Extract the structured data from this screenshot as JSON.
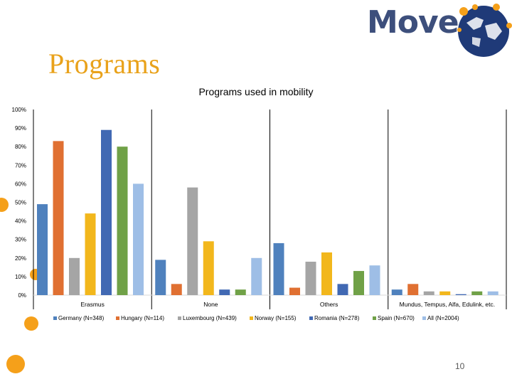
{
  "slide": {
    "title": "Programs",
    "logo_text": "Move",
    "page_number": "10"
  },
  "colors": {
    "title": "#e9a21b",
    "logo_text": "#3d4f7c",
    "bullet": "#f5a01a"
  },
  "chart_data": {
    "type": "bar",
    "title": "Programs used in mobility",
    "categories": [
      "Erasmus",
      "None",
      "Others",
      "Mundus, Tempus, Alfa, Edulink, etc."
    ],
    "y_ticks": [
      "0%",
      "10%",
      "20%",
      "30%",
      "40%",
      "50%",
      "60%",
      "70%",
      "80%",
      "90%",
      "100%"
    ],
    "ylim": [
      0,
      100
    ],
    "grid": false,
    "legend_position": "bottom",
    "series": [
      {
        "name": "Germany (N=348)",
        "color": "#4f81bd",
        "values": [
          49,
          19,
          28,
          3
        ]
      },
      {
        "name": "Hungary (N=114)",
        "color": "#e07032",
        "values": [
          83,
          6,
          4,
          6
        ]
      },
      {
        "name": "Luxembourg (N=439)",
        "color": "#a5a5a5",
        "values": [
          20,
          58,
          18,
          2
        ]
      },
      {
        "name": "Norway (N=155)",
        "color": "#f2b71c",
        "values": [
          44,
          29,
          23,
          2
        ]
      },
      {
        "name": "Romania (N=278)",
        "color": "#4169b3",
        "values": [
          89,
          3,
          6,
          0.5
        ]
      },
      {
        "name": "Spain (N=670)",
        "color": "#70a147",
        "values": [
          80,
          3,
          13,
          2
        ]
      },
      {
        "name": "All (N=2004)",
        "color": "#9ebee6",
        "values": [
          60,
          20,
          16,
          2
        ]
      }
    ]
  }
}
